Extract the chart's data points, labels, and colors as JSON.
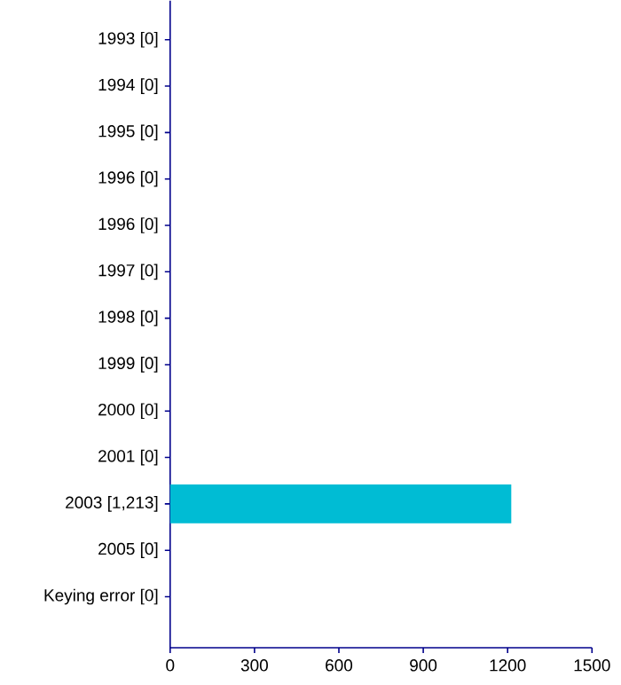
{
  "chart_data": {
    "type": "bar",
    "orientation": "horizontal",
    "categories": [
      "1993 [0]",
      "1994 [0]",
      "1995 [0]",
      "1996 [0]",
      "1996 [0]",
      "1997 [0]",
      "1998 [0]",
      "1999 [0]",
      "2000 [0]",
      "2001 [0]",
      "2003 [1,213]",
      "2005 [0]",
      "Keying error [0]"
    ],
    "values": [
      0,
      0,
      0,
      0,
      0,
      0,
      0,
      0,
      0,
      0,
      1213,
      0,
      0
    ],
    "color": "#00bcd4",
    "xlim": [
      0,
      1500
    ],
    "xticks": [
      0,
      300,
      600,
      900,
      1200,
      1500
    ]
  }
}
